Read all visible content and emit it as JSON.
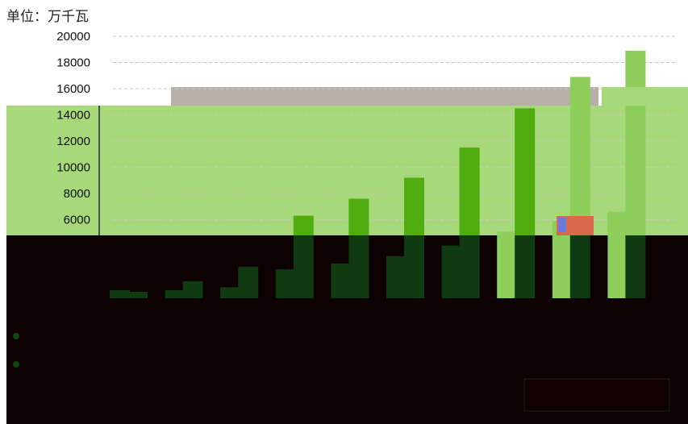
{
  "unit_label": "单位：万千瓦",
  "colors": {
    "background_plot_band": "#a7d87a",
    "dark_band": "#0d0000",
    "bar_bright": "#4fad0f",
    "bar_light": "#8ece5b",
    "bar_dark_part": "#103a10",
    "gridline": "#c8c8c8",
    "gray_strip": "#b8b0a8"
  },
  "chart_data": {
    "type": "bar",
    "ylabel": "单位：万千瓦",
    "ylim": [
      0,
      20000
    ],
    "yticks": [
      "20000",
      "18000",
      "16000",
      "14000",
      "12000",
      "10000",
      "8000",
      "6000"
    ],
    "grid": true,
    "series": [
      {
        "values": [
          500,
          1300,
          2400,
          6300,
          7600,
          9200,
          11500,
          14500,
          16900,
          18900
        ]
      }
    ]
  }
}
